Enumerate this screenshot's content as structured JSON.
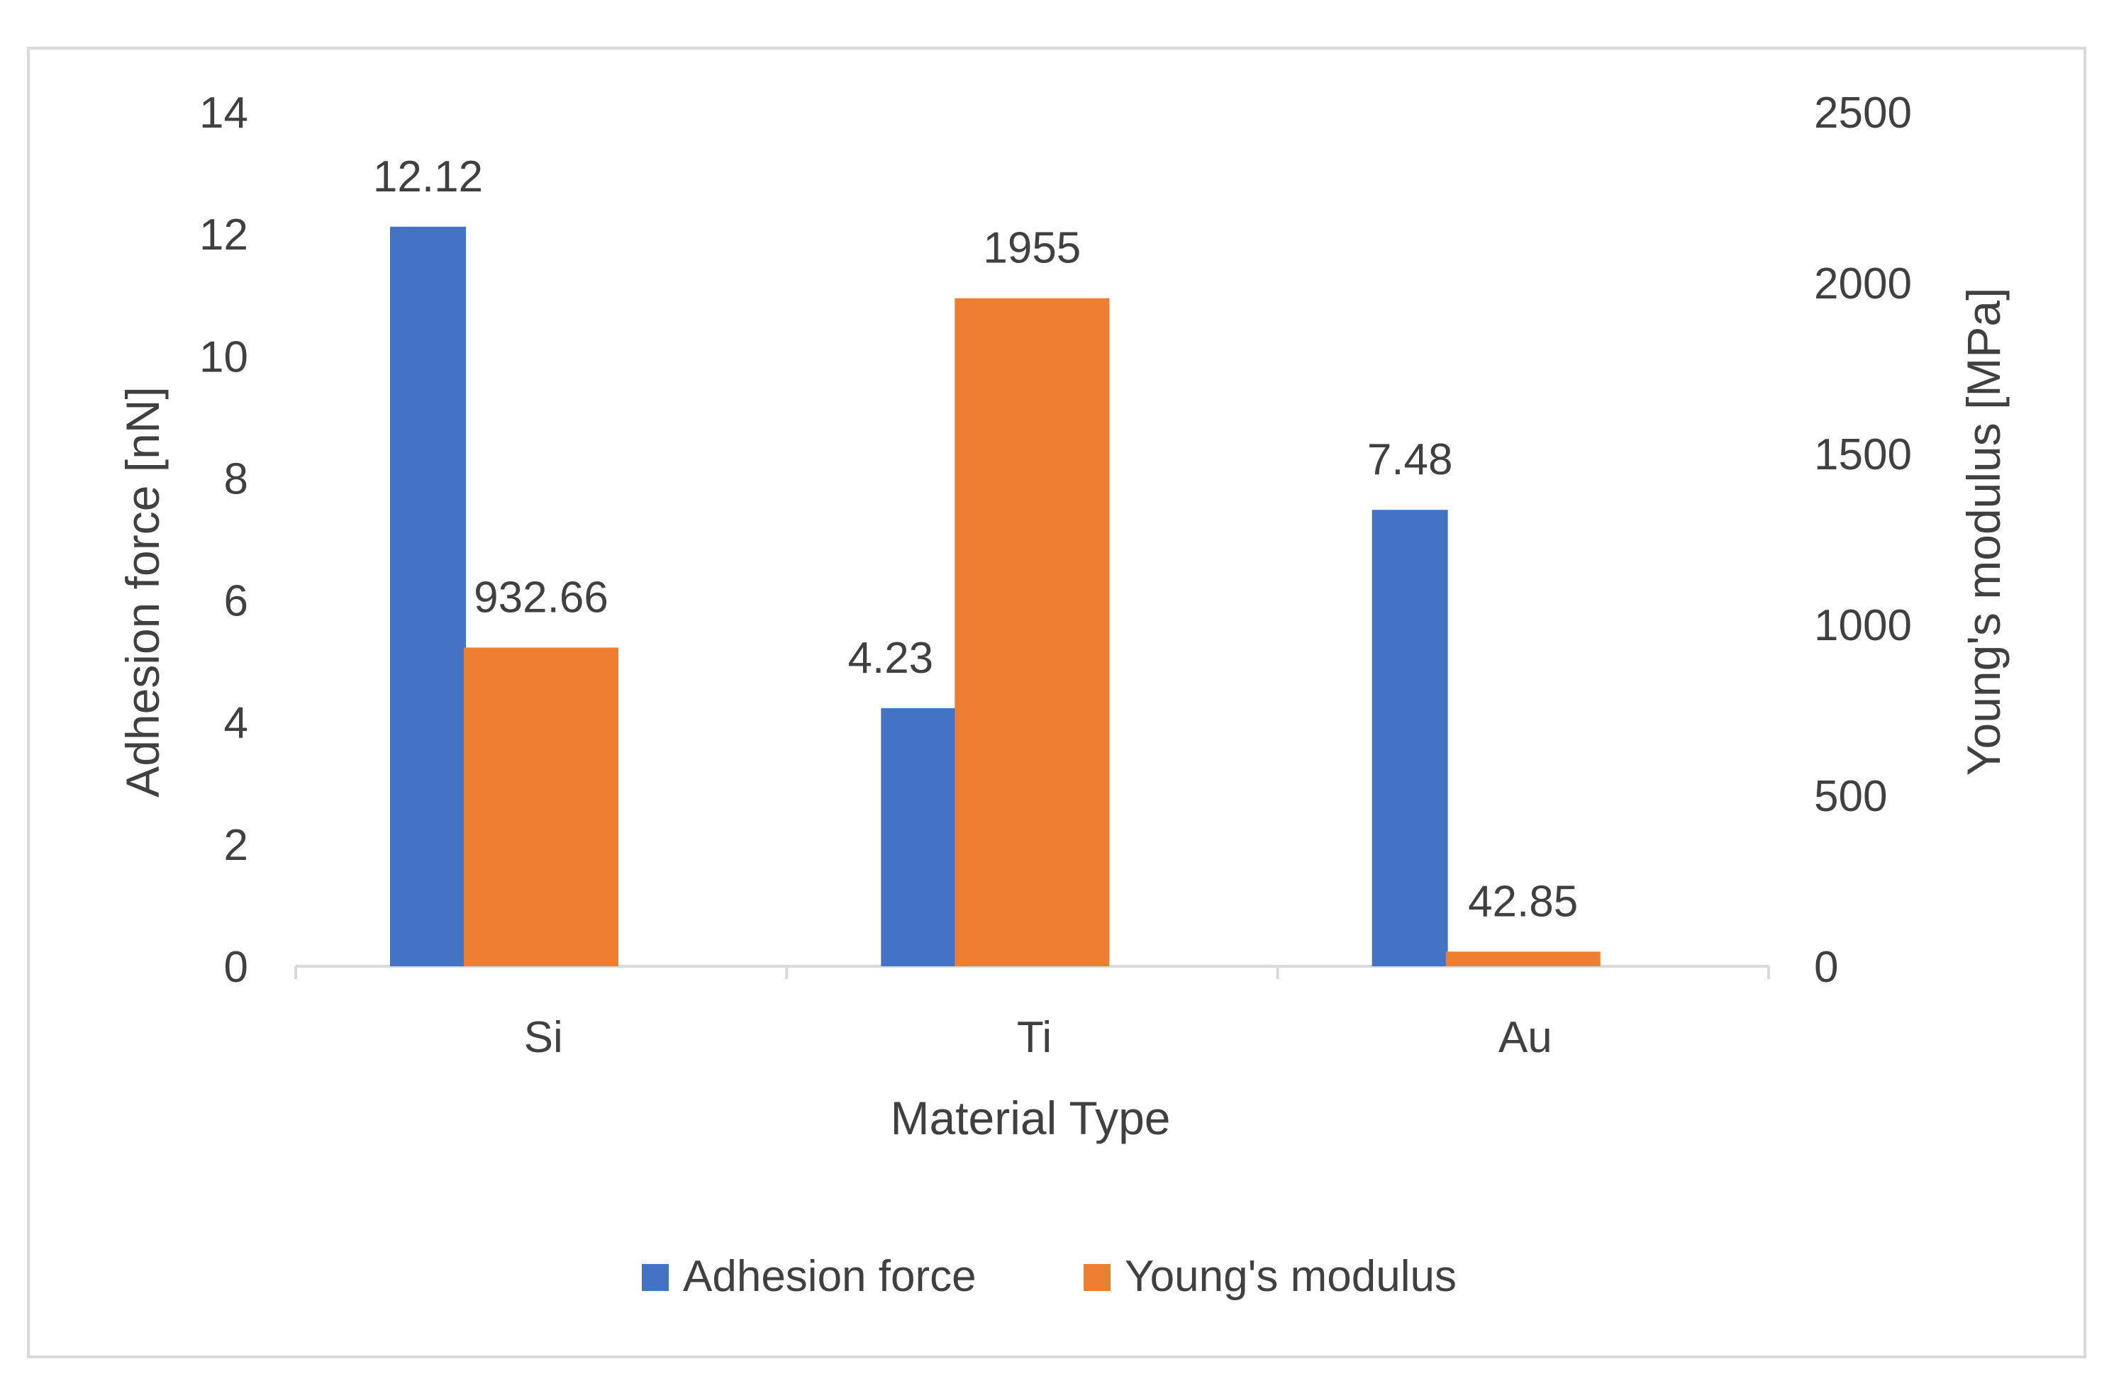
{
  "chart_data": {
    "type": "bar",
    "title": "",
    "xlabel": "Material Type",
    "ylabel_left": "Adhesion force [nN]",
    "ylabel_right": "Young's modulus [MPa]",
    "categories": [
      "Si",
      "Ti",
      "Au"
    ],
    "ylim_left": [
      0,
      14
    ],
    "yticks_left": [
      "0",
      "2",
      "4",
      "6",
      "8",
      "10",
      "12",
      "14"
    ],
    "ylim_right": [
      0,
      2500
    ],
    "yticks_right": [
      "0",
      "500",
      "1000",
      "1500",
      "2000",
      "2500"
    ],
    "grid": false,
    "legend_position": "bottom",
    "series": [
      {
        "name": "Adhesion force",
        "axis": "left",
        "color": "#4472C4",
        "values": [
          12.12,
          4.23,
          7.48
        ],
        "labels": [
          "12.12",
          "4.23",
          "7.48"
        ]
      },
      {
        "name": "Young's modulus",
        "axis": "right",
        "color": "#ED7D31",
        "values": [
          932.66,
          1955,
          42.85
        ],
        "labels": [
          "932.66",
          "1955",
          "42.85"
        ]
      }
    ]
  }
}
